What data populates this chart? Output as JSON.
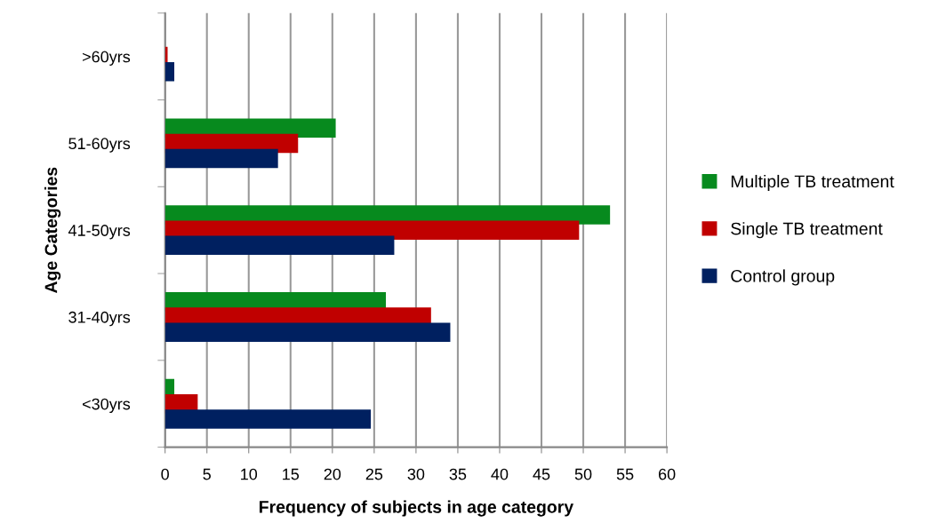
{
  "chart_data": {
    "type": "bar",
    "orientation": "horizontal",
    "xlabel": "Frequency of subjects in age category",
    "ylabel": "Age Categories",
    "categories": [
      ">60yrs",
      "51-60yrs",
      "41-50yrs",
      "31-40yrs",
      "<30yrs"
    ],
    "series": [
      {
        "name": "Multiple TB treatment",
        "color": "#078a1e",
        "values": [
          0,
          20.4,
          53.2,
          26.4,
          1.1
        ]
      },
      {
        "name": "Single TB treatment",
        "color": "#c00000",
        "values": [
          0.3,
          15.9,
          49.5,
          31.8,
          3.9
        ]
      },
      {
        "name": "Control group",
        "color": "#002060",
        "values": [
          1.1,
          13.5,
          27.4,
          34.1,
          24.6
        ]
      }
    ],
    "xlim": [
      0,
      60
    ],
    "xticks": [
      0,
      5,
      10,
      15,
      20,
      25,
      30,
      35,
      40,
      45,
      50,
      55,
      60
    ],
    "grid": "x",
    "legend": "right"
  }
}
